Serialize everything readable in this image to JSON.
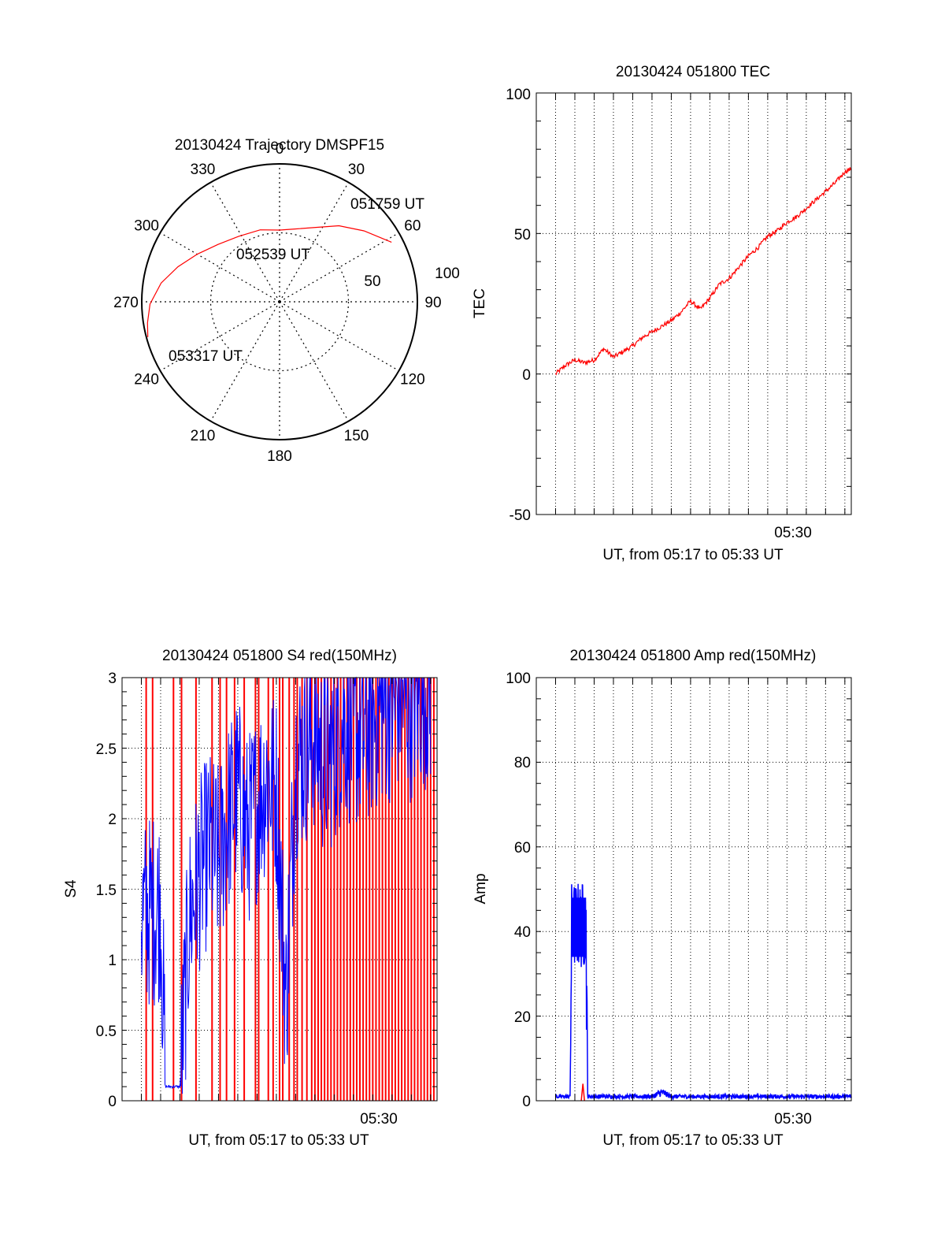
{
  "colors": {
    "red": "#ff0000",
    "blue": "#0000ff",
    "axis": "#000000",
    "grid": "#000000"
  },
  "chart_data": [
    {
      "type": "polar",
      "title": "20130424 Trajectory DMSPF15",
      "angle_labels": [
        "0",
        "30",
        "60",
        "90",
        "120",
        "150",
        "180",
        "210",
        "240",
        "270",
        "300",
        "330"
      ],
      "radial_labels": [
        "50",
        "100"
      ],
      "rlim": [
        0,
        100
      ],
      "grid": true,
      "series": [
        {
          "color": "red",
          "points": [
            {
              "az": 62,
              "r": 92
            },
            {
              "az": 50,
              "r": 80
            },
            {
              "az": 38,
              "r": 70
            },
            {
              "az": 26,
              "r": 60
            },
            {
              "az": 12,
              "r": 54
            },
            {
              "az": 0,
              "r": 52
            },
            {
              "az": 345,
              "r": 54
            },
            {
              "az": 328,
              "r": 56
            },
            {
              "az": 313,
              "r": 61
            },
            {
              "az": 300,
              "r": 69
            },
            {
              "az": 289,
              "r": 78
            },
            {
              "az": 279,
              "r": 87
            },
            {
              "az": 269,
              "r": 94
            },
            {
              "az": 261,
              "r": 97
            },
            {
              "az": 255,
              "r": 99
            }
          ]
        }
      ],
      "annotations": [
        "051759 UT",
        "052539 UT",
        "053317 UT"
      ]
    },
    {
      "type": "line",
      "title": "20130424 051800 TEC",
      "xlabel": "UT, from 05:17 to 05:33 UT",
      "ylabel": "TEC",
      "x_tick_labels": [
        "05:30"
      ],
      "y_tick_labels": [
        "-50",
        "0",
        "50",
        "100"
      ],
      "xlim": [
        "05:17:00",
        "05:33:20"
      ],
      "ylim": [
        -50,
        100
      ],
      "grid": true,
      "series": [
        {
          "color": "red",
          "x": [
            "05:18:00",
            "05:18:30",
            "05:19:00",
            "05:19:30",
            "05:20:00",
            "05:20:30",
            "05:21:00",
            "05:21:30",
            "05:22:00",
            "05:22:30",
            "05:23:00",
            "05:23:30",
            "05:24:00",
            "05:24:30",
            "05:25:00",
            "05:25:30",
            "05:26:00",
            "05:26:30",
            "05:27:00",
            "05:27:30",
            "05:28:00",
            "05:28:30",
            "05:29:00",
            "05:29:30",
            "05:30:00",
            "05:30:30",
            "05:31:00",
            "05:31:30",
            "05:32:00",
            "05:32:30",
            "05:33:00",
            "05:33:20"
          ],
          "y": [
            0,
            3,
            5,
            4,
            5,
            9,
            6,
            8,
            10,
            13,
            15,
            17,
            19,
            22,
            26,
            23,
            27,
            32,
            34,
            38,
            42,
            45,
            49,
            51,
            54,
            56,
            59,
            62,
            65,
            68,
            72,
            73
          ]
        }
      ]
    },
    {
      "type": "line",
      "title": "20130424 051800 S4 red(150MHz)",
      "xlabel": "UT, from 05:17 to 05:33 UT",
      "ylabel": "S4",
      "x_tick_labels": [
        "05:30"
      ],
      "y_tick_labels": [
        "0",
        "0.5",
        "1",
        "1.5",
        "2",
        "2.5",
        "3"
      ],
      "xlim": [
        "05:17:00",
        "05:33:20"
      ],
      "ylim": [
        0,
        3
      ],
      "grid": true,
      "series": [
        {
          "color": "blue",
          "x": [
            "05:18:00",
            "05:19:00",
            "05:19:15",
            "05:20:00",
            "05:20:30",
            "05:21:00",
            "05:21:30",
            "05:22:00",
            "05:22:30",
            "05:23:00",
            "05:23:30",
            "05:24:00",
            "05:24:30",
            "05:25:00",
            "05:25:30",
            "05:26:00",
            "05:26:30",
            "05:27:00",
            "05:27:30",
            "05:28:00",
            "05:28:30",
            "05:29:00",
            "05:29:30",
            "05:30:00",
            "05:30:30",
            "05:31:00",
            "05:31:30",
            "05:32:00",
            "05:32:30",
            "05:33:00"
          ],
          "y": [
            1.3,
            1.4,
            0.1,
            0.1,
            1.3,
            1.6,
            1.8,
            1.7,
            2.0,
            2.2,
            1.9,
            2.1,
            2.3,
            2.2,
            0.7,
            2.4,
            2.5,
            2.6,
            2.4,
            2.5,
            2.7,
            2.6,
            2.6,
            2.7,
            2.8,
            2.8,
            2.9,
            2.8,
            2.9,
            2.9
          ]
        },
        {
          "color": "red",
          "spike_times": [
            "05:18:15",
            "05:18:35",
            "05:19:40",
            "05:20:05",
            "05:20:50",
            "05:21:40",
            "05:22:05",
            "05:22:25",
            "05:22:50",
            "05:23:20",
            "05:23:55",
            "05:24:05",
            "05:24:35",
            "05:24:50",
            "05:25:10",
            "05:25:20",
            "05:25:40",
            "05:25:55",
            "05:26:05",
            "05:26:20",
            "05:26:35",
            "05:26:50",
            "05:27:00",
            "05:27:10",
            "05:27:20",
            "05:27:30",
            "05:27:40",
            "05:27:50",
            "05:28:00",
            "05:28:10",
            "05:28:20",
            "05:28:30",
            "05:28:40",
            "05:28:50",
            "05:29:00",
            "05:29:10",
            "05:29:20",
            "05:29:30",
            "05:29:40",
            "05:29:50",
            "05:30:00",
            "05:30:10",
            "05:30:20",
            "05:30:30",
            "05:30:40",
            "05:30:50",
            "05:31:00",
            "05:31:10",
            "05:31:20",
            "05:31:30",
            "05:31:40",
            "05:31:50",
            "05:32:00",
            "05:32:10",
            "05:32:20",
            "05:32:30",
            "05:32:40",
            "05:32:50",
            "05:33:00",
            "05:33:10"
          ]
        }
      ]
    },
    {
      "type": "line",
      "title": "20130424 051800 Amp red(150MHz)",
      "xlabel": "UT, from 05:17 to 05:33 UT",
      "ylabel": "Amp",
      "x_tick_labels": [
        "05:30"
      ],
      "y_tick_labels": [
        "0",
        "20",
        "40",
        "60",
        "80",
        "100"
      ],
      "xlim": [
        "05:17:00",
        "05:33:20"
      ],
      "ylim": [
        0,
        100
      ],
      "grid": true,
      "series": [
        {
          "color": "blue",
          "x": [
            "05:18:00",
            "05:18:45",
            "05:18:50",
            "05:19:35",
            "05:19:40",
            "05:21:00",
            "05:22:00",
            "05:23:00",
            "05:23:30",
            "05:24:00",
            "05:25:00",
            "05:26:00",
            "05:27:00",
            "05:28:00",
            "05:29:00",
            "05:30:00",
            "05:30:30",
            "05:31:00",
            "05:32:00",
            "05:33:20"
          ],
          "y": [
            1,
            1,
            40,
            40,
            1,
            1,
            1,
            1,
            2,
            1,
            1,
            1,
            1,
            1,
            1,
            1,
            1,
            1,
            1,
            1
          ],
          "band": {
            "from": "05:18:50",
            "to": "05:19:35",
            "min": 31,
            "max": 52
          }
        },
        {
          "color": "red",
          "x": [
            "05:19:20",
            "05:19:25",
            "05:19:30"
          ],
          "y": [
            0,
            4,
            0
          ]
        }
      ]
    }
  ]
}
